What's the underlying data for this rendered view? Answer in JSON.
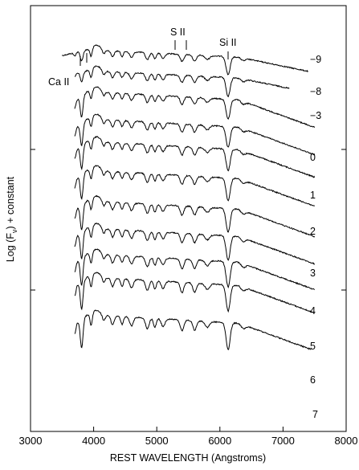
{
  "chart_data": {
    "type": "line",
    "title": "",
    "xlabel": "REST WAVELENGTH  (Angstroms)",
    "ylabel_text": "Log (F",
    "ylabel_sub": "ν",
    "ylabel_tail": ")  + constant",
    "xlim": [
      3000,
      8000
    ],
    "x_ticks": [
      3000,
      4000,
      5000,
      6000,
      7000,
      8000
    ],
    "x_tick_labels": [
      "3000",
      "4000",
      "5000",
      "6000",
      "7000",
      "8000"
    ],
    "grid": false,
    "annotations": [
      {
        "text": "Ca II",
        "x": 3800
      },
      {
        "text": "S II",
        "x": 5400
      },
      {
        "text": "Si II",
        "x": 6150
      }
    ],
    "series": [
      {
        "epoch": "−9"
      },
      {
        "epoch": "−8"
      },
      {
        "epoch": "−3"
      },
      {
        "epoch": "0"
      },
      {
        "epoch": "1"
      },
      {
        "epoch": "2"
      },
      {
        "epoch": "3"
      },
      {
        "epoch": "4"
      },
      {
        "epoch": "5"
      },
      {
        "epoch": "6"
      },
      {
        "epoch": "7"
      }
    ]
  }
}
